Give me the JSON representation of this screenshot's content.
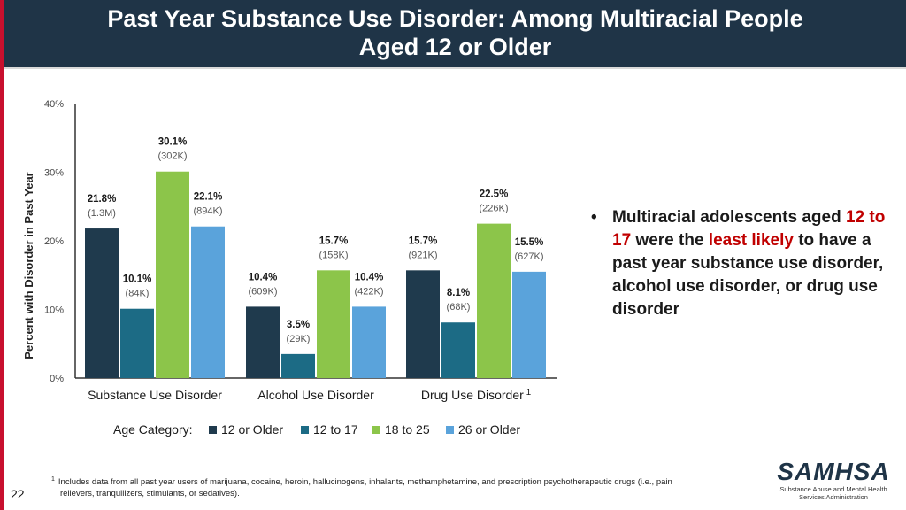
{
  "title": {
    "line1": "Past Year Substance Use Disorder: Among Multiracial People",
    "line2": "Aged 12 or Older"
  },
  "chart_data": {
    "type": "bar",
    "ylabel": "Percent with Disorder in Past Year",
    "ylim": [
      0,
      40
    ],
    "yticks": [
      "0%",
      "10%",
      "20%",
      "30%",
      "40%"
    ],
    "ytick_values": [
      0,
      10,
      20,
      30,
      40
    ],
    "categories": [
      "Substance Use Disorder",
      "Alcohol Use Disorder",
      "Drug Use Disorder"
    ],
    "category_sup": [
      "",
      "",
      "1"
    ],
    "legend_title": "Age Category:",
    "series": [
      {
        "name": "12 or Older",
        "color": "#1f3a4d",
        "values": [
          21.8,
          10.4,
          15.7
        ],
        "labels": [
          "21.8%",
          "10.4%",
          "15.7%"
        ],
        "counts": [
          "(1.3M)",
          "(609K)",
          "(921K)"
        ]
      },
      {
        "name": "12 to 17",
        "color": "#1c6b85",
        "values": [
          10.1,
          3.5,
          8.1
        ],
        "labels": [
          "10.1%",
          "3.5%",
          "8.1%"
        ],
        "counts": [
          "(84K)",
          "(29K)",
          "(68K)"
        ]
      },
      {
        "name": "18 to 25",
        "color": "#8cc54a",
        "values": [
          30.1,
          15.7,
          22.5
        ],
        "labels": [
          "30.1%",
          "15.7%",
          "22.5%"
        ],
        "counts": [
          "(302K)",
          "(158K)",
          "(226K)"
        ]
      },
      {
        "name": "26 or Older",
        "color": "#5aa3db",
        "values": [
          22.1,
          10.4,
          15.5
        ],
        "labels": [
          "22.1%",
          "10.4%",
          "15.5%"
        ],
        "counts": [
          "(894K)",
          "(422K)",
          "(627K)"
        ]
      }
    ]
  },
  "bullet": {
    "dot": "•",
    "pre": "Multiracial adolescents aged",
    "hl1": "12 to 17",
    "mid": "were the",
    "hl2": "least likely",
    "post": "to have a past year substance use disorder, alcohol use disorder, or drug use disorder"
  },
  "footnote": {
    "marker": "1",
    "line1": "Includes data from all past year users of marijuana, cocaine, heroin, hallucinogens, inhalants, methamphetamine, and prescription psychotherapeutic drugs (i.e., pain",
    "line2": "relievers, tranquilizers, stimulants, or sedatives)."
  },
  "slide_number": "22",
  "logo": {
    "word": "SAMHSA",
    "sub1": "Substance Abuse and Mental Health",
    "sub2": "Services Administration"
  }
}
